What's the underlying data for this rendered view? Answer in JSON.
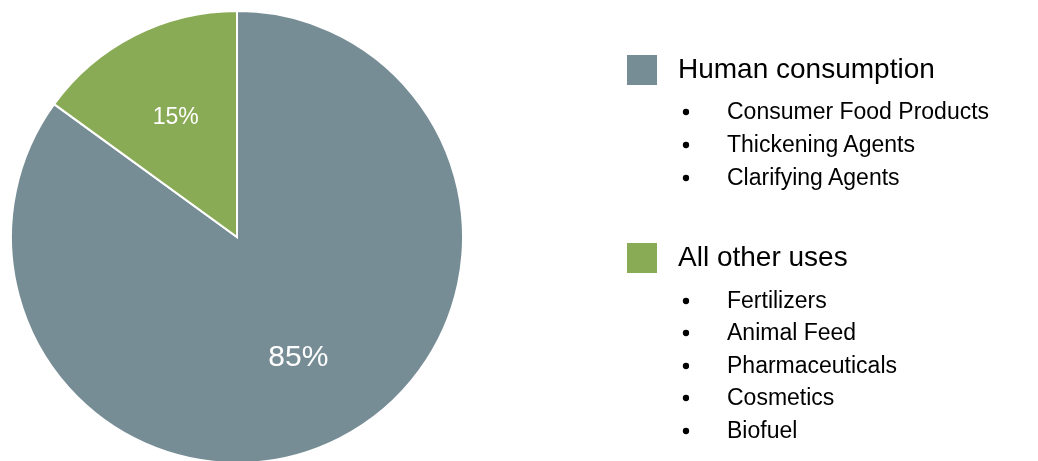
{
  "chart_data": {
    "type": "pie",
    "categories": [
      "Human consumption",
      "All other uses"
    ],
    "values": [
      85,
      15
    ],
    "colors": [
      "#778d96",
      "#8aab55"
    ],
    "value_labels": [
      "85%",
      "15%"
    ],
    "legend": "right",
    "annotations": [
      "Consumer Food Products",
      "Thickening Agents",
      "Clarifying Agents",
      "Fertilizers",
      "Animal Feed",
      "Pharmaceuticals",
      "Cosmetics",
      "Biofuel"
    ]
  }
}
